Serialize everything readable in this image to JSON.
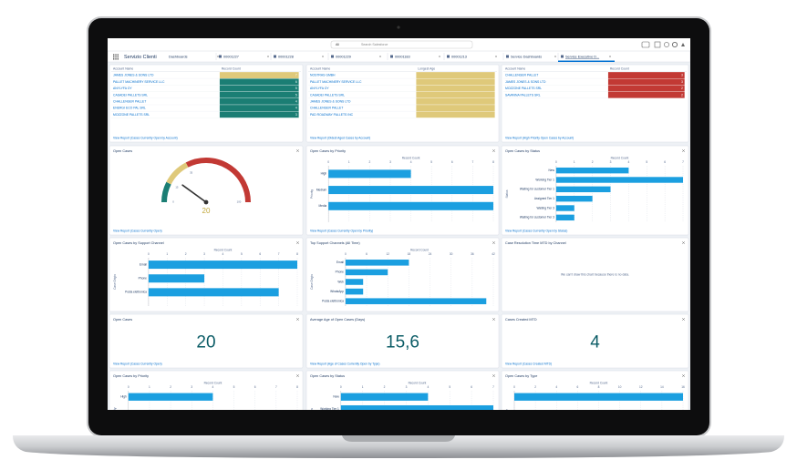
{
  "header": {
    "search_scope": "All",
    "search_placeholder": "Search Salesforce"
  },
  "nav": {
    "app_name": "Servizio Clienti",
    "tabs": [
      "Dashboards",
      "00001227",
      "00001228",
      "00001229",
      "00001183",
      "00001213",
      "Service Dashboards",
      "Service Executive D..."
    ]
  },
  "widgets": [
    {
      "type": "table",
      "columns": [
        "Account Name",
        "Record Count"
      ],
      "rows": [
        {
          "account": "JAMES JONES & SONS LTD",
          "value": 7,
          "color": "#dfc97a"
        },
        {
          "account": "PALLET MACHINERY SERVICE LLC",
          "value": 6,
          "color": "#1b7e74"
        },
        {
          "account": "ANYLYFA OY",
          "value": 5,
          "color": "#1b7e74"
        },
        {
          "account": "CASADEI PALLETS SRL",
          "value": 5,
          "color": "#1b7e74"
        },
        {
          "account": "CHALLENGER PALLET",
          "value": 4,
          "color": "#1b7e74"
        },
        {
          "account": "ENERGI ECO PAL SRL",
          "value": 4,
          "color": "#1b7e74"
        },
        {
          "account": "MOZZONE PALLETS SRL",
          "value": 3,
          "color": "#1b7e74"
        }
      ],
      "footer": "View Report (Cases Currently Open by Account)"
    },
    {
      "type": "table",
      "columns": [
        "Account Name",
        "Longest Age"
      ],
      "rows": [
        {
          "account": "NOSTRAS GMBH",
          "color": "#dfc97a"
        },
        {
          "account": "PALLET MACHINERY SERVICE LLC",
          "color": "#dfc97a"
        },
        {
          "account": "ANYLYFA OY",
          "color": "#dfc97a"
        },
        {
          "account": "CASADEI PALLETS SRL",
          "color": "#dfc97a"
        },
        {
          "account": "JAMES JONES & SONS LTD",
          "color": "#dfc97a"
        },
        {
          "account": "CHALLENGER PALLET",
          "color": "#dfc97a"
        },
        {
          "account": "PAD ROADWAY PALLETS INC",
          "color": "#dfc97a"
        }
      ],
      "footer": "View Report (Oldest Aged Cases by Account)"
    },
    {
      "type": "table",
      "columns": [
        "Account Name",
        "Record Count"
      ],
      "rows": [
        {
          "account": "CHALLENGER PALLET",
          "value": 3,
          "color": "#c23934"
        },
        {
          "account": "JAMES JONES & SONS LTD",
          "value": 3,
          "color": "#c23934"
        },
        {
          "account": "MOZZONE PALLETS SRL",
          "value": 2,
          "color": "#c23934"
        },
        {
          "account": "SAVANNA PALLETS SRL",
          "value": 2,
          "color": "#c23934"
        }
      ],
      "footer": "View Report (High Priority Open Cases by Account)"
    },
    {
      "type": "gauge",
      "title": "Open Cases",
      "value": 20,
      "breakpoints": [
        0,
        15,
        35,
        100
      ],
      "colors": [
        "#1b7e74",
        "#dfc97a",
        "#c23934"
      ],
      "footer": "View Report (Cases Currently Open)"
    },
    {
      "type": "hbar",
      "title": "Open Cases by Priority",
      "axis_title": "Record Count",
      "y_axis_title": "Priority",
      "categories": [
        "High",
        "Medium",
        "Media"
      ],
      "values": [
        4,
        8,
        8
      ],
      "xlim": [
        0,
        8
      ],
      "xticks": [
        0,
        1,
        2,
        3,
        4,
        5,
        6,
        7,
        8
      ],
      "color": "#1b9fe0",
      "footer": "View Report (Cases Currently Open by Priority)"
    },
    {
      "type": "hbar",
      "title": "Open Cases by Status",
      "axis_title": "Record Count",
      "y_axis_title": "Status",
      "categories": [
        "New",
        "Working Tier 1",
        "Waiting for customer Tier 1",
        "Assigned Tier 1",
        "Waiting Tier 3",
        "Waiting for customer Tier 3"
      ],
      "values": [
        4,
        7,
        3,
        2,
        1,
        1
      ],
      "xlim": [
        0,
        7
      ],
      "xticks": [
        0,
        1,
        2,
        3,
        4,
        5,
        6,
        7
      ],
      "color": "#1b9fe0",
      "footer": "View Report (Cases Currently Open by Status)"
    },
    {
      "type": "hbar",
      "title": "Open Cases by Support Channel",
      "axis_title": "Record Count",
      "y_axis_title": "Case Origin",
      "categories": [
        "Email",
        "Phone",
        "Posta elettronica"
      ],
      "values": [
        8,
        3,
        7
      ],
      "xlim": [
        0,
        8
      ],
      "xticks": [
        0,
        1,
        2,
        3,
        4,
        5,
        6,
        7,
        8
      ],
      "color": "#1b9fe0"
    },
    {
      "type": "hbar",
      "title": "Top Support Channels (All Time)",
      "axis_title": "Record Count",
      "y_axis_title": "Case Origin",
      "categories": [
        "Email",
        "Phone",
        "Web",
        "WhatsApp",
        "Posta elettronica"
      ],
      "values": [
        18,
        12,
        5,
        5,
        40
      ],
      "xlim": [
        0,
        42
      ],
      "xticks": [
        0,
        6,
        12,
        18,
        24,
        30,
        36,
        42
      ],
      "color": "#1b9fe0"
    },
    {
      "type": "empty",
      "title": "Case Resolution Time MTD by Channel",
      "message": "We can't draw this chart because there is no data."
    },
    {
      "type": "metric",
      "title": "Open Cases",
      "value": 20,
      "footer": "View Report (Cases Currently Open)"
    },
    {
      "type": "metric",
      "title": "Average Age of Open Cases (Days)",
      "value": {
        "value": 15.6,
        "label": "15,6"
      },
      "footer": "View Report (Age of Cases Currently Open by Type)"
    },
    {
      "type": "metric",
      "title": "Cases Created MTD",
      "value": 4,
      "footer": "View Report (Cases Created MTD)"
    },
    {
      "type": "hbar",
      "title": "Open Cases by Priority",
      "axis_title": "Record Count",
      "y_axis_title": "Priority",
      "categories": [
        "High"
      ],
      "values": [
        4
      ],
      "xlim": [
        0,
        8
      ],
      "xticks": [
        0,
        1,
        2,
        3,
        4,
        5,
        6,
        7,
        8
      ],
      "color": "#1b9fe0"
    },
    {
      "type": "hbar",
      "title": "Open Cases by Status",
      "axis_title": "Record Count",
      "y_axis_title": "Status",
      "categories": [
        "New",
        "Working Tier 1"
      ],
      "values": [
        4,
        7
      ],
      "xlim": [
        0,
        7
      ],
      "xticks": [
        0,
        1,
        2,
        3,
        4,
        5,
        6,
        7
      ],
      "color": "#1b9fe0"
    },
    {
      "type": "hbar",
      "title": "Open Cases by Type",
      "axis_title": "Record Count",
      "y_axis_title": "Type",
      "categories": [
        null
      ],
      "values": [
        16
      ],
      "xlim": [
        0,
        16
      ],
      "xticks": [
        0,
        2,
        4,
        6,
        8,
        10,
        12,
        14,
        16
      ],
      "color": "#1b9fe0"
    }
  ]
}
